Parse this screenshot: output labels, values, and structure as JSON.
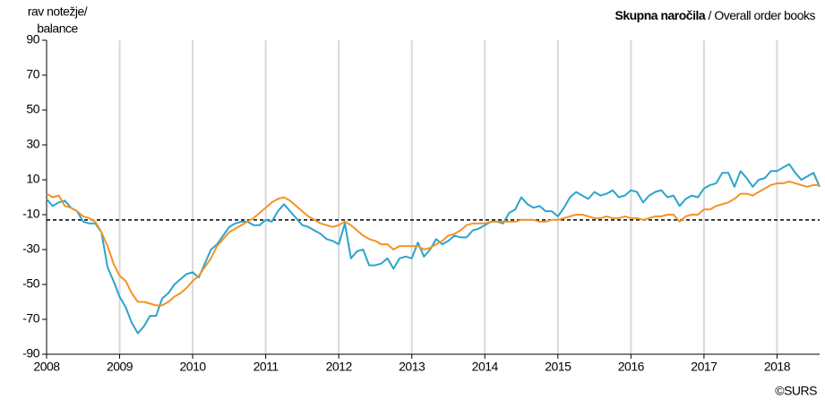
{
  "chart_data": {
    "type": "line",
    "title_bold": "Skupna naročila",
    "title_rest": " / Overall order books",
    "y_label_lines": [
      "rav notežje/",
      "balance"
    ],
    "source": "©SURS",
    "categories": [
      "2008",
      null,
      null,
      null,
      null,
      null,
      null,
      null,
      null,
      null,
      null,
      null,
      "2009",
      null,
      null,
      null,
      null,
      null,
      null,
      null,
      null,
      null,
      null,
      null,
      "2010",
      null,
      null,
      null,
      null,
      null,
      null,
      null,
      null,
      null,
      null,
      null,
      "2011",
      null,
      null,
      null,
      null,
      null,
      null,
      null,
      null,
      null,
      null,
      null,
      "2012",
      null,
      null,
      null,
      null,
      null,
      null,
      null,
      null,
      null,
      null,
      null,
      "2013",
      null,
      null,
      null,
      null,
      null,
      null,
      null,
      null,
      null,
      null,
      null,
      "2014",
      null,
      null,
      null,
      null,
      null,
      null,
      null,
      null,
      null,
      null,
      null,
      "2015",
      null,
      null,
      null,
      null,
      null,
      null,
      null,
      null,
      null,
      null,
      null,
      "2016",
      null,
      null,
      null,
      null,
      null,
      null,
      null,
      null,
      null,
      null,
      null,
      "2017",
      null,
      null,
      null,
      null,
      null,
      null,
      null,
      null,
      null,
      null,
      null,
      "2018",
      null,
      null,
      null,
      null,
      null,
      null,
      null
    ],
    "series": [
      {
        "color": "#2ba4cb",
        "values": [
          -1,
          -5,
          -3,
          -2,
          -6,
          -8,
          -14,
          -15,
          -15,
          -20,
          -40,
          -48,
          -57,
          -63,
          -72,
          -78,
          -74,
          -68,
          -68,
          -58,
          -55,
          -50,
          -47,
          -44,
          -43,
          -46,
          -38,
          -30,
          -27,
          -22,
          -17,
          -15,
          -14,
          -14,
          -16,
          -16,
          -13,
          -14,
          -8,
          -4,
          -8,
          -12,
          -16,
          -17,
          -19,
          -21,
          -24,
          -25,
          -27,
          -15,
          -35,
          -31,
          -30,
          -39,
          -39,
          -38,
          -35,
          -41,
          -35,
          -34,
          -35,
          -26,
          -34,
          -30,
          -24,
          -27,
          -25,
          -22,
          -23,
          -23,
          -19,
          -18,
          -16,
          -14,
          -14,
          -15,
          -9,
          -7,
          0,
          -4,
          -6,
          -5,
          -8,
          -8,
          -11,
          -6,
          0,
          3,
          1,
          -1,
          3,
          1,
          2,
          4,
          0,
          1,
          4,
          3,
          -3,
          1,
          3,
          4,
          0,
          1,
          -5,
          -1,
          1,
          0,
          5,
          7,
          8,
          14,
          14,
          6,
          15,
          11,
          6,
          10,
          11,
          15,
          15,
          17,
          19,
          14,
          10,
          12,
          14,
          6
        ]
      },
      {
        "color": "#f39325",
        "values": [
          2,
          0,
          1,
          -5,
          -6,
          -8,
          -11,
          -12,
          -14,
          -20,
          -28,
          -38,
          -45,
          -48,
          -55,
          -60,
          -60,
          -61,
          -62,
          -62,
          -60,
          -57,
          -55,
          -52,
          -48,
          -45,
          -40,
          -35,
          -28,
          -24,
          -20,
          -18,
          -16,
          -14,
          -12,
          -9,
          -6,
          -3,
          -1,
          0,
          -2,
          -5,
          -8,
          -11,
          -13,
          -15,
          -16,
          -17,
          -16,
          -14,
          -16,
          -19,
          -22,
          -24,
          -25,
          -27,
          -27,
          -30,
          -28,
          -28,
          -28,
          -28,
          -30,
          -29,
          -27,
          -25,
          -22,
          -21,
          -19,
          -16,
          -15,
          -15,
          -15,
          -14,
          -14,
          -14,
          -14,
          -14,
          -13,
          -13,
          -13,
          -14,
          -14,
          -13,
          -13,
          -12,
          -11,
          -10,
          -10,
          -11,
          -12,
          -12,
          -11,
          -12,
          -12,
          -11,
          -12,
          -12,
          -13,
          -12,
          -11,
          -11,
          -10,
          -10,
          -14,
          -11,
          -10,
          -10,
          -7,
          -7,
          -5,
          -4,
          -3,
          -1,
          2,
          2,
          1,
          3,
          5,
          7,
          8,
          8,
          9,
          8,
          7,
          6,
          7,
          7
        ]
      }
    ],
    "average_line": -13,
    "ylim": [
      -90,
      90
    ],
    "yticks": [
      -90,
      -70,
      -50,
      -30,
      -10,
      10,
      30,
      50,
      70,
      90
    ],
    "grid": true
  }
}
